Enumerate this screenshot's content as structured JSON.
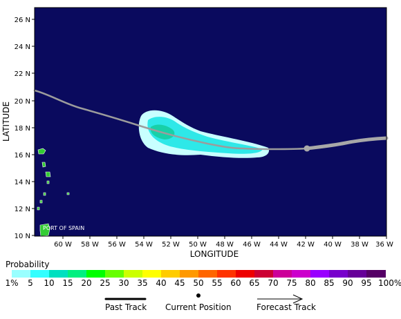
{
  "map": {
    "y_axis_title": "LATITUDE",
    "x_axis_title": "LONGITUDE",
    "lat_ticks": [
      "26 N",
      "24 N",
      "22 N",
      "20 N",
      "18 N",
      "16 N",
      "14 N",
      "12 N",
      "10 N"
    ],
    "lon_ticks": [
      "60 W",
      "58 W",
      "56 W",
      "54 W",
      "52 W",
      "50 W",
      "48 W",
      "46 W",
      "44 W",
      "42 W",
      "40 W",
      "38 W",
      "36 W"
    ],
    "city_label": "PORT OF SPAIN",
    "ocean_color": "#0a0a5e",
    "land_color": "#33cc33",
    "track_color": "#999999",
    "probability_color": "#2ee8e8",
    "current_position": {
      "lon": -41.9,
      "lat": 16.5
    }
  },
  "scale": {
    "title": "Probability",
    "labels": [
      "1%",
      "5",
      "10",
      "15",
      "20",
      "25",
      "30",
      "35",
      "40",
      "45",
      "50",
      "55",
      "60",
      "65",
      "70",
      "75",
      "80",
      "85",
      "90",
      "95",
      "100%"
    ],
    "colors": [
      "#99ffff",
      "#33ffff",
      "#00e0c0",
      "#00f080",
      "#00ff00",
      "#66ff00",
      "#ccff00",
      "#ffff00",
      "#ffcc00",
      "#ff9900",
      "#ff6600",
      "#ff3300",
      "#ee0000",
      "#cc0033",
      "#cc0099",
      "#cc00cc",
      "#9900ff",
      "#7700cc",
      "#660099",
      "#550066"
    ]
  },
  "legend": {
    "past_track": "Past Track",
    "current_position": "Current Position",
    "forecast_track": "Forecast Track"
  }
}
